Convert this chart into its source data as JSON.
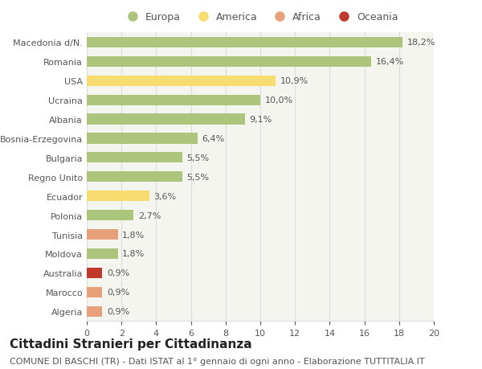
{
  "categories": [
    "Macedonia d/N.",
    "Romania",
    "USA",
    "Ucraina",
    "Albania",
    "Bosnia-Erzegovina",
    "Bulgaria",
    "Regno Unito",
    "Ecuador",
    "Polonia",
    "Tunisia",
    "Moldova",
    "Australia",
    "Marocco",
    "Algeria"
  ],
  "values": [
    18.2,
    16.4,
    10.9,
    10.0,
    9.1,
    6.4,
    5.5,
    5.5,
    3.6,
    2.7,
    1.8,
    1.8,
    0.9,
    0.9,
    0.9
  ],
  "labels": [
    "18,2%",
    "16,4%",
    "10,9%",
    "10,0%",
    "9,1%",
    "6,4%",
    "5,5%",
    "5,5%",
    "3,6%",
    "2,7%",
    "1,8%",
    "1,8%",
    "0,9%",
    "0,9%",
    "0,9%"
  ],
  "continents": [
    "Europa",
    "Europa",
    "America",
    "Europa",
    "Europa",
    "Europa",
    "Europa",
    "Europa",
    "America",
    "Europa",
    "Africa",
    "Europa",
    "Oceania",
    "Africa",
    "Africa"
  ],
  "continent_colors": {
    "Europa": "#adc47d",
    "America": "#f7dc6f",
    "Africa": "#e8a07a",
    "Oceania": "#c0392b"
  },
  "title": "Cittadini Stranieri per Cittadinanza",
  "subtitle": "COMUNE DI BASCHI (TR) - Dati ISTAT al 1° gennaio di ogni anno - Elaborazione TUTTITALIA.IT",
  "xlim": [
    0,
    20
  ],
  "xticks": [
    0,
    2,
    4,
    6,
    8,
    10,
    12,
    14,
    16,
    18,
    20
  ],
  "background_color": "#ffffff",
  "plot_bg_color": "#f5f5f0",
  "grid_color": "#dddddd",
  "bar_height": 0.55,
  "title_fontsize": 11,
  "subtitle_fontsize": 8,
  "label_fontsize": 8,
  "tick_fontsize": 8,
  "legend_fontsize": 9
}
